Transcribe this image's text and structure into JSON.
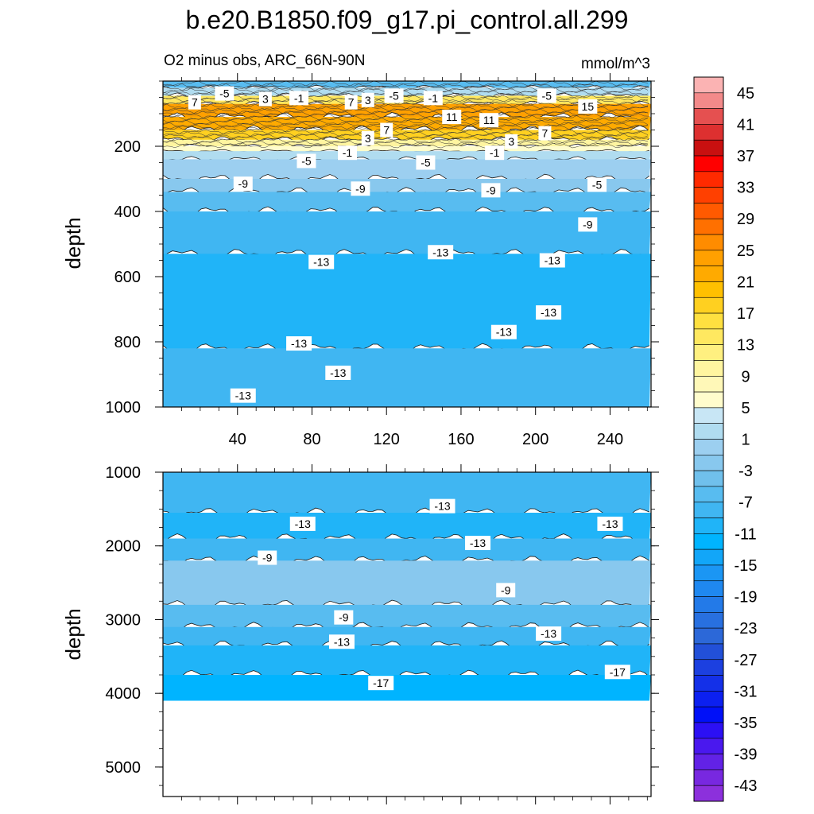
{
  "chart_data": [
    {
      "type": "contour",
      "title": "b.e20.B1850.f09_g17.pi_control.all.299",
      "subtitle_left": "O2 minus obs, ARC_66N-90N",
      "subtitle_right": "mmol/m^3",
      "xlabel": "",
      "ylabel": "depth",
      "xlim": [
        0,
        262
      ],
      "ylim": [
        1000,
        0
      ],
      "xticks": [
        "40",
        "80",
        "120",
        "160",
        "200",
        "240"
      ],
      "xtick_values": [
        40,
        80,
        120,
        160,
        200,
        240
      ],
      "yticks": [
        "200",
        "400",
        "600",
        "800",
        "1000"
      ],
      "ytick_values": [
        200,
        400,
        600,
        800,
        1000
      ],
      "bands": [
        {
          "depth_top": 0,
          "depth_bottom": 20,
          "value": -9
        },
        {
          "depth_top": 20,
          "depth_bottom": 45,
          "value": -3
        },
        {
          "depth_top": 45,
          "depth_bottom": 70,
          "value": 5
        },
        {
          "depth_top": 70,
          "depth_bottom": 110,
          "value": 13
        },
        {
          "depth_top": 110,
          "depth_bottom": 150,
          "value": 11
        },
        {
          "depth_top": 150,
          "depth_bottom": 180,
          "value": 7
        },
        {
          "depth_top": 180,
          "depth_bottom": 200,
          "value": 3
        },
        {
          "depth_top": 200,
          "depth_bottom": 215,
          "value": 1
        },
        {
          "depth_top": 215,
          "depth_bottom": 240,
          "value": -3
        },
        {
          "depth_top": 240,
          "depth_bottom": 300,
          "value": -5
        },
        {
          "depth_top": 300,
          "depth_bottom": 340,
          "value": -7
        },
        {
          "depth_top": 340,
          "depth_bottom": 400,
          "value": -9
        },
        {
          "depth_top": 400,
          "depth_bottom": 530,
          "value": -11
        },
        {
          "depth_top": 530,
          "depth_bottom": 820,
          "value": -13
        },
        {
          "depth_top": 820,
          "depth_bottom": 1000,
          "value": -11
        }
      ],
      "contour_labels": [
        {
          "x": 17,
          "depth": 65,
          "text": "7"
        },
        {
          "x": 33,
          "depth": 38,
          "text": "-5"
        },
        {
          "x": 55,
          "depth": 55,
          "text": "3"
        },
        {
          "x": 73,
          "depth": 52,
          "text": "-1"
        },
        {
          "x": 101,
          "depth": 65,
          "text": "7"
        },
        {
          "x": 110,
          "depth": 58,
          "text": "3"
        },
        {
          "x": 124,
          "depth": 45,
          "text": "-5"
        },
        {
          "x": 145,
          "depth": 52,
          "text": "-1"
        },
        {
          "x": 206,
          "depth": 45,
          "text": "-5"
        },
        {
          "x": 228,
          "depth": 78,
          "text": "15"
        },
        {
          "x": 155,
          "depth": 110,
          "text": "11"
        },
        {
          "x": 175,
          "depth": 120,
          "text": "11"
        },
        {
          "x": 120,
          "depth": 150,
          "text": "7"
        },
        {
          "x": 205,
          "depth": 160,
          "text": "7"
        },
        {
          "x": 110,
          "depth": 175,
          "text": "3"
        },
        {
          "x": 187,
          "depth": 185,
          "text": "3"
        },
        {
          "x": 99,
          "depth": 220,
          "text": "-1"
        },
        {
          "x": 178,
          "depth": 220,
          "text": "-1"
        },
        {
          "x": 77,
          "depth": 245,
          "text": "-5"
        },
        {
          "x": 141,
          "depth": 250,
          "text": "-5"
        },
        {
          "x": 43,
          "depth": 315,
          "text": "-9"
        },
        {
          "x": 106,
          "depth": 330,
          "text": "-9"
        },
        {
          "x": 176,
          "depth": 335,
          "text": "-9"
        },
        {
          "x": 233,
          "depth": 318,
          "text": "-5"
        },
        {
          "x": 228,
          "depth": 440,
          "text": "-9"
        },
        {
          "x": 149,
          "depth": 525,
          "text": "-13"
        },
        {
          "x": 85,
          "depth": 555,
          "text": "-13"
        },
        {
          "x": 209,
          "depth": 550,
          "text": "-13"
        },
        {
          "x": 183,
          "depth": 770,
          "text": "-13"
        },
        {
          "x": 207,
          "depth": 710,
          "text": "-13"
        },
        {
          "x": 73,
          "depth": 805,
          "text": "-13"
        },
        {
          "x": 94,
          "depth": 895,
          "text": "-13"
        },
        {
          "x": 43,
          "depth": 965,
          "text": "-13"
        }
      ]
    },
    {
      "type": "contour",
      "xlabel": "",
      "ylabel": "depth",
      "xlim": [
        0,
        262
      ],
      "ylim": [
        5400,
        1000
      ],
      "xticks": [],
      "xtick_values": [
        40,
        80,
        120,
        160,
        200,
        240
      ],
      "yticks": [
        "1000",
        "2000",
        "3000",
        "4000",
        "5000"
      ],
      "ytick_values": [
        1000,
        2000,
        3000,
        4000,
        5000
      ],
      "data_bottom_depth": 4100,
      "bands": [
        {
          "depth_top": 1000,
          "depth_bottom": 1550,
          "value": -11
        },
        {
          "depth_top": 1550,
          "depth_bottom": 1900,
          "value": -13
        },
        {
          "depth_top": 1900,
          "depth_bottom": 2200,
          "value": -11
        },
        {
          "depth_top": 2200,
          "depth_bottom": 2800,
          "value": -7
        },
        {
          "depth_top": 2800,
          "depth_bottom": 3100,
          "value": -9
        },
        {
          "depth_top": 3100,
          "depth_bottom": 3350,
          "value": -11
        },
        {
          "depth_top": 3350,
          "depth_bottom": 3750,
          "value": -13
        },
        {
          "depth_top": 3750,
          "depth_bottom": 4100,
          "value": -15
        }
      ],
      "contour_labels": [
        {
          "x": 150,
          "depth": 1460,
          "text": "-13"
        },
        {
          "x": 75,
          "depth": 1700,
          "text": "-13"
        },
        {
          "x": 240,
          "depth": 1700,
          "text": "-13"
        },
        {
          "x": 169,
          "depth": 1960,
          "text": "-13"
        },
        {
          "x": 56,
          "depth": 2160,
          "text": "-9"
        },
        {
          "x": 184,
          "depth": 2600,
          "text": "-9"
        },
        {
          "x": 97,
          "depth": 2970,
          "text": "-9"
        },
        {
          "x": 96,
          "depth": 3300,
          "text": "-13"
        },
        {
          "x": 207,
          "depth": 3190,
          "text": "-13"
        },
        {
          "x": 117,
          "depth": 3860,
          "text": "-17"
        },
        {
          "x": 244,
          "depth": 3710,
          "text": "-17"
        }
      ]
    }
  ],
  "colorbar": {
    "labels": [
      "45",
      "41",
      "37",
      "33",
      "29",
      "25",
      "21",
      "17",
      "13",
      "9",
      "5",
      "1",
      "-3",
      "-7",
      "-11",
      "-15",
      "-19",
      "-23",
      "-27",
      "-31",
      "-35",
      "-39",
      "-43"
    ],
    "colors": [
      "#fbb3b3",
      "#f38a8a",
      "#e55050",
      "#dd3030",
      "#c91010",
      "#ff0000",
      "#ff2a00",
      "#ff4000",
      "#ff5a00",
      "#ff7000",
      "#ff8c00",
      "#ffa000",
      "#ffaa00",
      "#ffc000",
      "#ffd020",
      "#ffe040",
      "#ffe860",
      "#fff080",
      "#fff5a0",
      "#fff8b8",
      "#fffccc",
      "#c8e6f5",
      "#b0dcf0",
      "#9ccff0",
      "#88c8ee",
      "#70c0ec",
      "#58bcf0",
      "#40b6f2",
      "#20b4f8",
      "#00b4ff",
      "#12a6f8",
      "#1b96f4",
      "#1f88f0",
      "#237ae8",
      "#2870e0",
      "#2c68d8",
      "#2250d8",
      "#1c40e0",
      "#1430e8",
      "#0c20f0",
      "#0010f8",
      "#2c10f4",
      "#4a18ee",
      "#6222e6",
      "#7828e0",
      "#8c30dc"
    ]
  },
  "colors": {
    "band_scale": [
      {
        "value": -15,
        "color": "#00b4ff"
      },
      {
        "value": -13,
        "color": "#20b4f8"
      },
      {
        "value": -11,
        "color": "#40b6f2"
      },
      {
        "value": -9,
        "color": "#58bcf0"
      },
      {
        "value": -7,
        "color": "#88c8ee"
      },
      {
        "value": -5,
        "color": "#9ccff0"
      },
      {
        "value": -3,
        "color": "#b0dcf0"
      },
      {
        "value": 1,
        "color": "#fffccc"
      },
      {
        "value": 3,
        "color": "#fff5a0"
      },
      {
        "value": 5,
        "color": "#ffe860"
      },
      {
        "value": 7,
        "color": "#ffd020"
      },
      {
        "value": 9,
        "color": "#ffc000"
      },
      {
        "value": 11,
        "color": "#ffaa00"
      },
      {
        "value": 13,
        "color": "#ffa000"
      }
    ]
  }
}
